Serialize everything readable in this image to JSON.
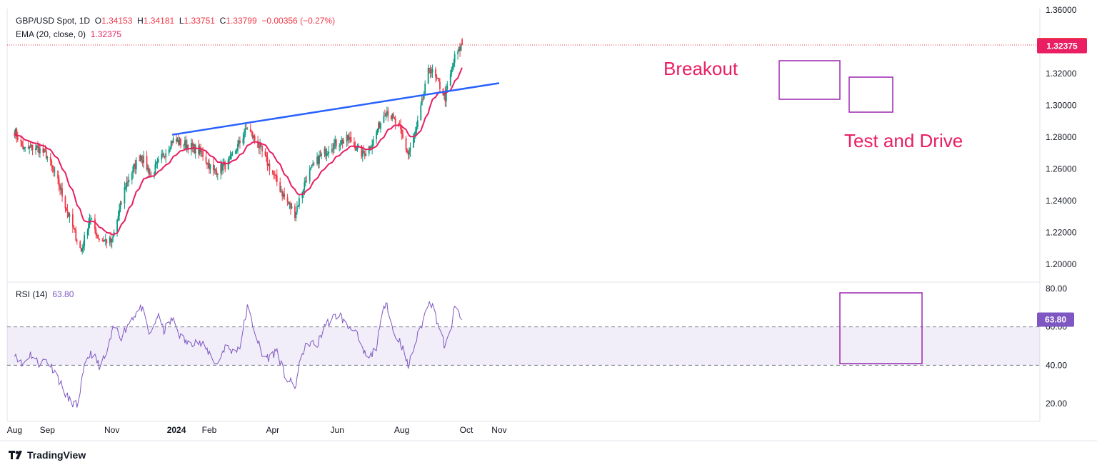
{
  "legend": {
    "symbol": "GBP/USD Spot, 1D",
    "o_label": "O",
    "o_value": "1.34153",
    "h_label": "H",
    "h_value": "1.34181",
    "l_label": "L",
    "l_value": "1.33751",
    "c_label": "C",
    "c_value": "1.33799",
    "change": "−0.00356 (−0.27%)",
    "ema_label": "EMA (20, close, 0)",
    "ema_value": "1.32375",
    "rsi_label": "RSI (14)",
    "rsi_value": "63.80"
  },
  "brand": {
    "name": "TradingView",
    "logo_icon": "tradingview-logo-icon"
  },
  "colors": {
    "up": "#089981",
    "down": "#f23645",
    "ema": "#e91e63",
    "trendline": "#2962ff",
    "rsi": "#7e57c2",
    "box": "#9c27b0",
    "grid": "#e0e3eb"
  },
  "chart_data": [
    {
      "type": "candlestick",
      "title": "GBP/USD Spot, 1D",
      "x_ticks": [
        "Aug",
        "Sep",
        "Nov",
        "2024",
        "Feb",
        "Apr",
        "Jun",
        "Aug",
        "Oct",
        "Nov"
      ],
      "y_ticks": [
        "1.36000",
        "1.34000",
        "1.32000",
        "1.30000",
        "1.28000",
        "1.26000",
        "1.24000",
        "1.22000",
        "1.20000"
      ],
      "ylim": [
        1.193,
        1.36
      ],
      "last_price": "1.33799",
      "ema_last": "1.32375",
      "price_anchors": [
        [
          "2023-08-01",
          1.284
        ],
        [
          "2023-08-10",
          1.272
        ],
        [
          "2023-08-21",
          1.274
        ],
        [
          "2023-08-31",
          1.269
        ],
        [
          "2023-09-12",
          1.25
        ],
        [
          "2023-09-22",
          1.229
        ],
        [
          "2023-10-03",
          1.208
        ],
        [
          "2023-10-11",
          1.229
        ],
        [
          "2023-10-20",
          1.216
        ],
        [
          "2023-11-01",
          1.214
        ],
        [
          "2023-11-14",
          1.25
        ],
        [
          "2023-11-28",
          1.269
        ],
        [
          "2023-12-08",
          1.256
        ],
        [
          "2023-12-28",
          1.278
        ],
        [
          "2024-01-12",
          1.275
        ],
        [
          "2024-01-25",
          1.27
        ],
        [
          "2024-02-05",
          1.258
        ],
        [
          "2024-02-20",
          1.264
        ],
        [
          "2024-03-08",
          1.286
        ],
        [
          "2024-03-20",
          1.273
        ],
        [
          "2024-04-02",
          1.256
        ],
        [
          "2024-04-12",
          1.242
        ],
        [
          "2024-04-22",
          1.232
        ],
        [
          "2024-05-03",
          1.255
        ],
        [
          "2024-05-15",
          1.267
        ],
        [
          "2024-05-27",
          1.275
        ],
        [
          "2024-06-12",
          1.279
        ],
        [
          "2024-06-25",
          1.269
        ],
        [
          "2024-07-04",
          1.276
        ],
        [
          "2024-07-17",
          1.298
        ],
        [
          "2024-07-30",
          1.285
        ],
        [
          "2024-08-07",
          1.269
        ],
        [
          "2024-08-15",
          1.285
        ],
        [
          "2024-08-27",
          1.324
        ],
        [
          "2024-09-06",
          1.312
        ],
        [
          "2024-09-11",
          1.305
        ],
        [
          "2024-09-20",
          1.33
        ],
        [
          "2024-09-27",
          1.338
        ]
      ],
      "trendline": {
        "from": [
          "2023-12-28",
          1.2815
        ],
        "to": [
          "2024-11-01",
          1.314
        ]
      },
      "annotations": [
        {
          "text": "Breakout"
        },
        {
          "text": "Test and Drive"
        }
      ]
    },
    {
      "type": "line",
      "title": "RSI (14)",
      "y_ticks": [
        "80.00",
        "60.00",
        "40.00",
        "20.00"
      ],
      "ylim": [
        13,
        83
      ],
      "band": [
        40,
        60
      ],
      "last_value": "63.80",
      "rsi_anchors": [
        [
          "2023-08-01",
          47
        ],
        [
          "2023-08-08",
          40
        ],
        [
          "2023-08-16",
          46
        ],
        [
          "2023-08-24",
          41
        ],
        [
          "2023-08-31",
          43
        ],
        [
          "2023-09-08",
          37
        ],
        [
          "2023-09-14",
          30
        ],
        [
          "2023-09-21",
          22
        ],
        [
          "2023-09-29",
          19
        ],
        [
          "2023-10-06",
          38
        ],
        [
          "2023-10-12",
          47
        ],
        [
          "2023-10-20",
          40
        ],
        [
          "2023-10-26",
          44
        ],
        [
          "2023-11-03",
          60
        ],
        [
          "2023-11-10",
          55
        ],
        [
          "2023-11-20",
          65
        ],
        [
          "2023-11-29",
          70
        ],
        [
          "2023-12-07",
          55
        ],
        [
          "2023-12-14",
          66
        ],
        [
          "2023-12-20",
          58
        ],
        [
          "2023-12-28",
          64
        ],
        [
          "2024-01-05",
          55
        ],
        [
          "2024-01-12",
          51
        ],
        [
          "2024-01-19",
          53
        ],
        [
          "2024-01-26",
          50
        ],
        [
          "2024-02-02",
          46
        ],
        [
          "2024-02-08",
          40
        ],
        [
          "2024-02-16",
          50
        ],
        [
          "2024-02-23",
          47
        ],
        [
          "2024-03-01",
          50
        ],
        [
          "2024-03-08",
          70
        ],
        [
          "2024-03-15",
          58
        ],
        [
          "2024-03-22",
          45
        ],
        [
          "2024-03-29",
          44
        ],
        [
          "2024-04-05",
          48
        ],
        [
          "2024-04-12",
          35
        ],
        [
          "2024-04-22",
          28
        ],
        [
          "2024-04-29",
          47
        ],
        [
          "2024-05-06",
          52
        ],
        [
          "2024-05-13",
          50
        ],
        [
          "2024-05-20",
          61
        ],
        [
          "2024-05-27",
          64
        ],
        [
          "2024-06-03",
          67
        ],
        [
          "2024-06-10",
          60
        ],
        [
          "2024-06-17",
          60
        ],
        [
          "2024-06-24",
          48
        ],
        [
          "2024-07-01",
          43
        ],
        [
          "2024-07-08",
          50
        ],
        [
          "2024-07-17",
          75
        ],
        [
          "2024-07-24",
          57
        ],
        [
          "2024-07-31",
          52
        ],
        [
          "2024-08-07",
          39
        ],
        [
          "2024-08-14",
          52
        ],
        [
          "2024-08-21",
          63
        ],
        [
          "2024-08-27",
          75
        ],
        [
          "2024-09-02",
          66
        ],
        [
          "2024-09-06",
          58
        ],
        [
          "2024-09-11",
          49
        ],
        [
          "2024-09-16",
          58
        ],
        [
          "2024-09-20",
          70
        ],
        [
          "2024-09-24",
          67
        ],
        [
          "2024-09-27",
          63.8
        ]
      ],
      "annotation_box": {
        "from": [
          "2024-09-01",
          78
        ],
        "to": [
          "2024-10-08",
          40
        ]
      }
    }
  ]
}
